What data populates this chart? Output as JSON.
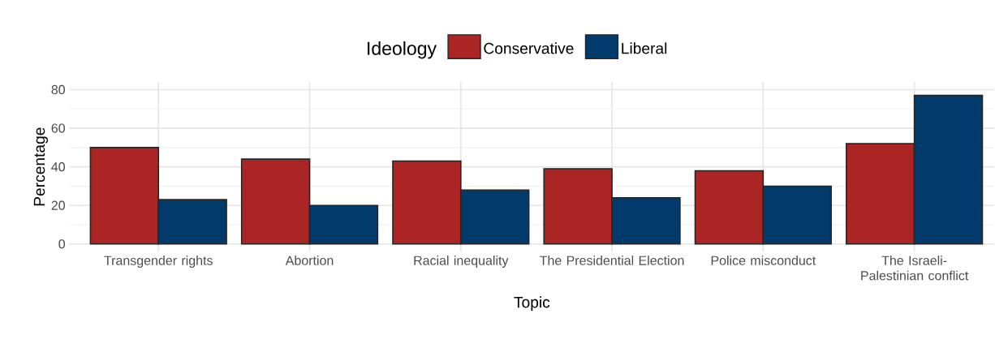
{
  "chart_data": {
    "type": "bar",
    "xlabel": "Topic",
    "ylabel": "Percentage",
    "legend_title": "Ideology",
    "categories": [
      "Transgender rights",
      "Abortion",
      "Racial inequality",
      "The Presidential Election",
      "Police misconduct",
      "The Israeli-Palestinian conflict"
    ],
    "series": [
      {
        "name": "Conservative",
        "color": "#ab2525",
        "values": [
          50,
          44,
          43,
          39,
          38,
          52
        ]
      },
      {
        "name": "Liberal",
        "color": "#023a6c",
        "values": [
          23,
          20,
          28,
          24,
          30,
          77
        ]
      }
    ],
    "ylim": [
      -4,
      84
    ],
    "yticks": [
      0,
      20,
      40,
      60,
      80
    ],
    "grid": true,
    "legend": "top"
  }
}
